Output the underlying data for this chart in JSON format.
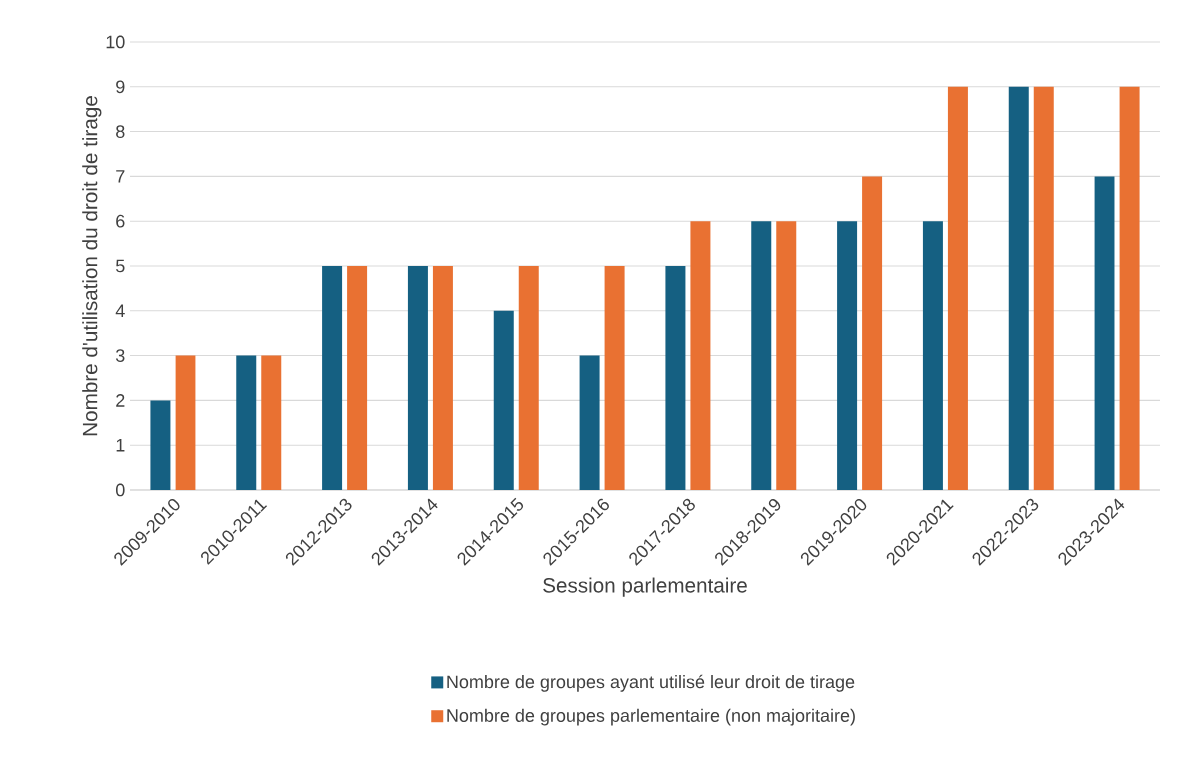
{
  "chart_data": {
    "type": "bar",
    "xlabel": "Session parlementaire",
    "ylabel": "Nombre d'utilisation du droit de tirage",
    "categories": [
      "2009-2010",
      "2010-2011",
      "2012-2013",
      "2013-2014",
      "2014-2015",
      "2015-2016",
      "2017-2018",
      "2018-2019",
      "2019-2020",
      "2020-2021",
      "2022-2023",
      "2023-2024"
    ],
    "series": [
      {
        "name": "Nombre de groupes ayant utilisé leur droit de tirage",
        "color": "#156082",
        "values": [
          2,
          3,
          5,
          5,
          4,
          3,
          5,
          6,
          6,
          6,
          9,
          7
        ]
      },
      {
        "name": "Nombre de groupes parlementaire (non majoritaire)",
        "color": "#e97132",
        "values": [
          3,
          3,
          5,
          5,
          5,
          5,
          6,
          6,
          7,
          9,
          9,
          9
        ]
      }
    ],
    "ylim": [
      0,
      10
    ],
    "yticks": [
      0,
      1,
      2,
      3,
      4,
      5,
      6,
      7,
      8,
      9,
      10
    ],
    "grid": "y",
    "legend": "bottom"
  }
}
